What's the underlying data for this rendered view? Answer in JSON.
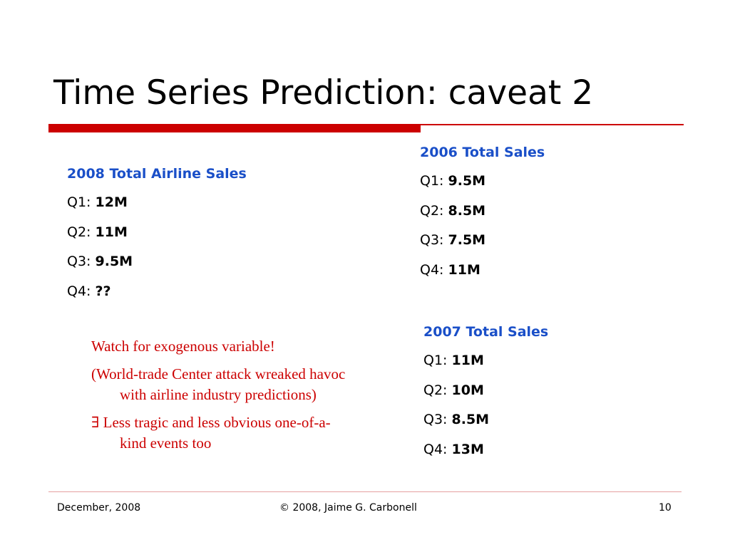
{
  "slide": {
    "title": "Time Series Prediction: caveat 2",
    "accent_color": "#cc0000",
    "heading_color": "#1a4fc8"
  },
  "sales_2008": {
    "heading": "2008 Total Airline Sales",
    "rows": [
      {
        "label": "Q1:",
        "value": "12M"
      },
      {
        "label": "Q2:",
        "value": "11M"
      },
      {
        "label": "Q3:",
        "value": "9.5M"
      },
      {
        "label": "Q4:",
        "value": "??"
      }
    ]
  },
  "sales_2006": {
    "heading": "2006 Total Sales",
    "rows": [
      {
        "label": "Q1:",
        "value": "9.5M"
      },
      {
        "label": "Q2:",
        "value": "8.5M"
      },
      {
        "label": "Q3:",
        "value": "7.5M"
      },
      {
        "label": "Q4:",
        "value": "11M"
      }
    ]
  },
  "sales_2007": {
    "heading": "2007 Total Sales",
    "rows": [
      {
        "label": "Q1:",
        "value": "11M"
      },
      {
        "label": "Q2:",
        "value": "10M"
      },
      {
        "label": "Q3:",
        "value": "8.5M"
      },
      {
        "label": "Q4:",
        "value": "13M"
      }
    ]
  },
  "notes": [
    "Watch for exogenous variable!",
    "(World-trade Center attack wreaked havoc with airline industry predictions)",
    "∃  Less tragic and less obvious one-of-a-kind events too"
  ],
  "footer": {
    "date": "December, 2008",
    "copyright": "© 2008, Jaime G. Carbonell",
    "page_number": "10"
  }
}
